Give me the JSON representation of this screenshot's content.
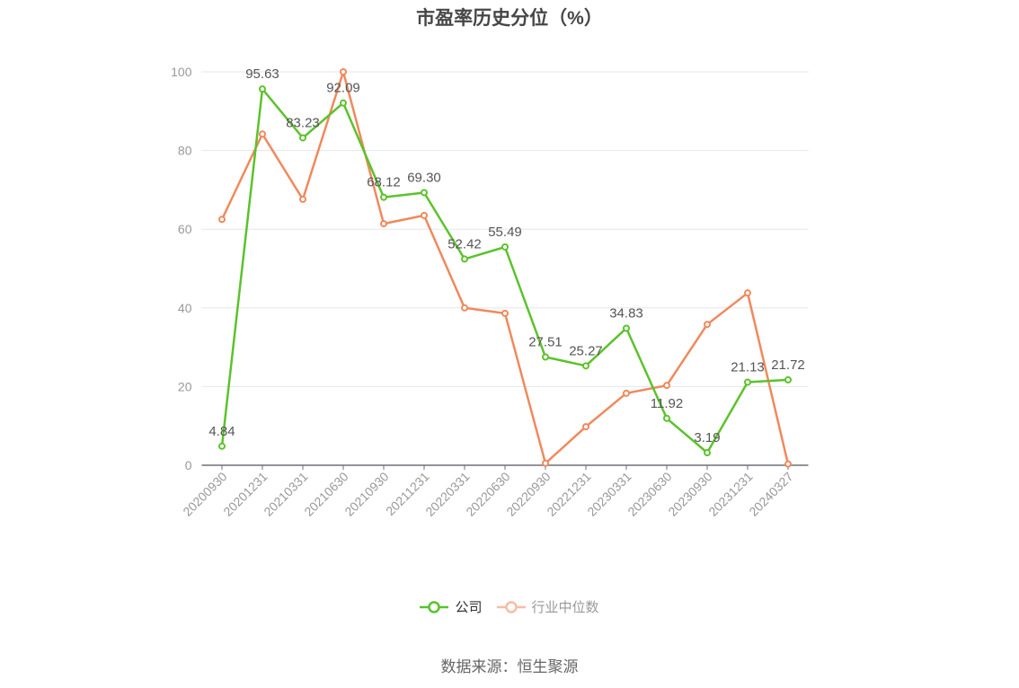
{
  "chart_data": {
    "type": "line",
    "title": "市盈率历史分位（%）",
    "categories": [
      "20200930",
      "20201231",
      "20210331",
      "20210630",
      "20210930",
      "20211231",
      "20220331",
      "20220630",
      "20220930",
      "20221231",
      "20230331",
      "20230630",
      "20230930",
      "20231231",
      "20240327"
    ],
    "series": [
      {
        "name": "公司",
        "values": [
          4.84,
          95.63,
          83.23,
          92.09,
          68.12,
          69.3,
          52.42,
          55.49,
          27.51,
          25.27,
          34.83,
          11.92,
          3.19,
          21.13,
          21.72
        ],
        "color": "#5cc22c",
        "legend_color": "#5cc22c",
        "legend_text_color": "#333333",
        "data_labels": true
      },
      {
        "name": "行业中位数",
        "values": [
          62.5,
          84.2,
          67.6,
          100,
          61.4,
          63.5,
          40.0,
          38.6,
          0.5,
          9.8,
          18.3,
          20.3,
          35.8,
          43.8,
          0.3
        ],
        "color": "#f0895c",
        "legend_color": "#f8bca6",
        "legend_text_color": "#999999",
        "data_labels": false
      }
    ],
    "ylim": [
      0,
      100
    ],
    "yticks": [
      0,
      20,
      40,
      60,
      80,
      100
    ],
    "grid": true,
    "legend": "bottom-center"
  },
  "source": "数据来源：恒生聚源"
}
